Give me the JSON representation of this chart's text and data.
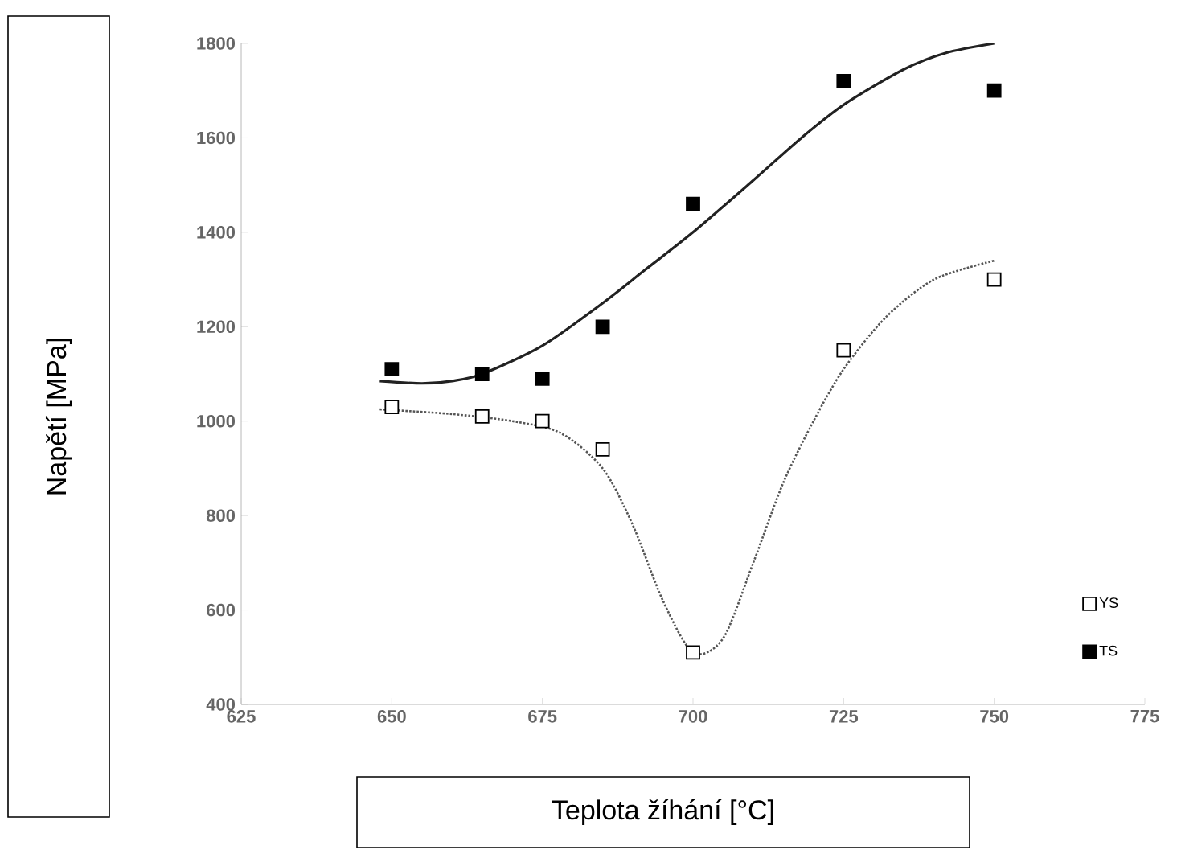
{
  "chart_data": {
    "type": "scatter",
    "xlabel": "Teplota žíhání [°C]",
    "ylabel": "Napětí [MPa]",
    "xlim": [
      625,
      775
    ],
    "xticks": [
      625,
      650,
      675,
      700,
      725,
      750,
      775
    ],
    "ylim": [
      400,
      1800
    ],
    "yticks": [
      400,
      600,
      800,
      1000,
      1200,
      1400,
      1600,
      1800
    ],
    "grid": false,
    "legend": "bottom right",
    "marker": "square",
    "series": [
      {
        "name": "YS",
        "color": "#ffffff",
        "x": [
          650,
          665,
          675,
          685,
          700,
          725,
          750
        ],
        "values": [
          1030,
          1010,
          1000,
          940,
          510,
          1150,
          1300
        ]
      },
      {
        "name": "TS",
        "color": "#000000",
        "x": [
          650,
          665,
          675,
          685,
          700,
          725,
          750
        ],
        "values": [
          1110,
          1100,
          1090,
          1200,
          1460,
          1720,
          1700
        ]
      },
      {
        "type": "line",
        "marker": "none",
        "line_style": "dotted",
        "color": "#555555",
        "x": [
          648,
          660,
          670,
          678,
          685,
          690,
          695,
          700,
          705,
          710,
          715,
          720,
          725,
          732,
          740,
          750
        ],
        "values": [
          1025,
          1015,
          1000,
          975,
          900,
          780,
          620,
          510,
          540,
          700,
          870,
          1000,
          1110,
          1220,
          1300,
          1340
        ]
      },
      {
        "type": "line",
        "marker": "none",
        "line_style": "solid",
        "color": "#222222",
        "x": [
          648,
          655,
          660,
          665,
          675,
          685,
          692,
          700,
          710,
          718,
          725,
          735,
          742,
          750
        ],
        "values": [
          1085,
          1080,
          1085,
          1100,
          1160,
          1250,
          1320,
          1400,
          1510,
          1600,
          1670,
          1745,
          1780,
          1800
        ]
      }
    ]
  }
}
